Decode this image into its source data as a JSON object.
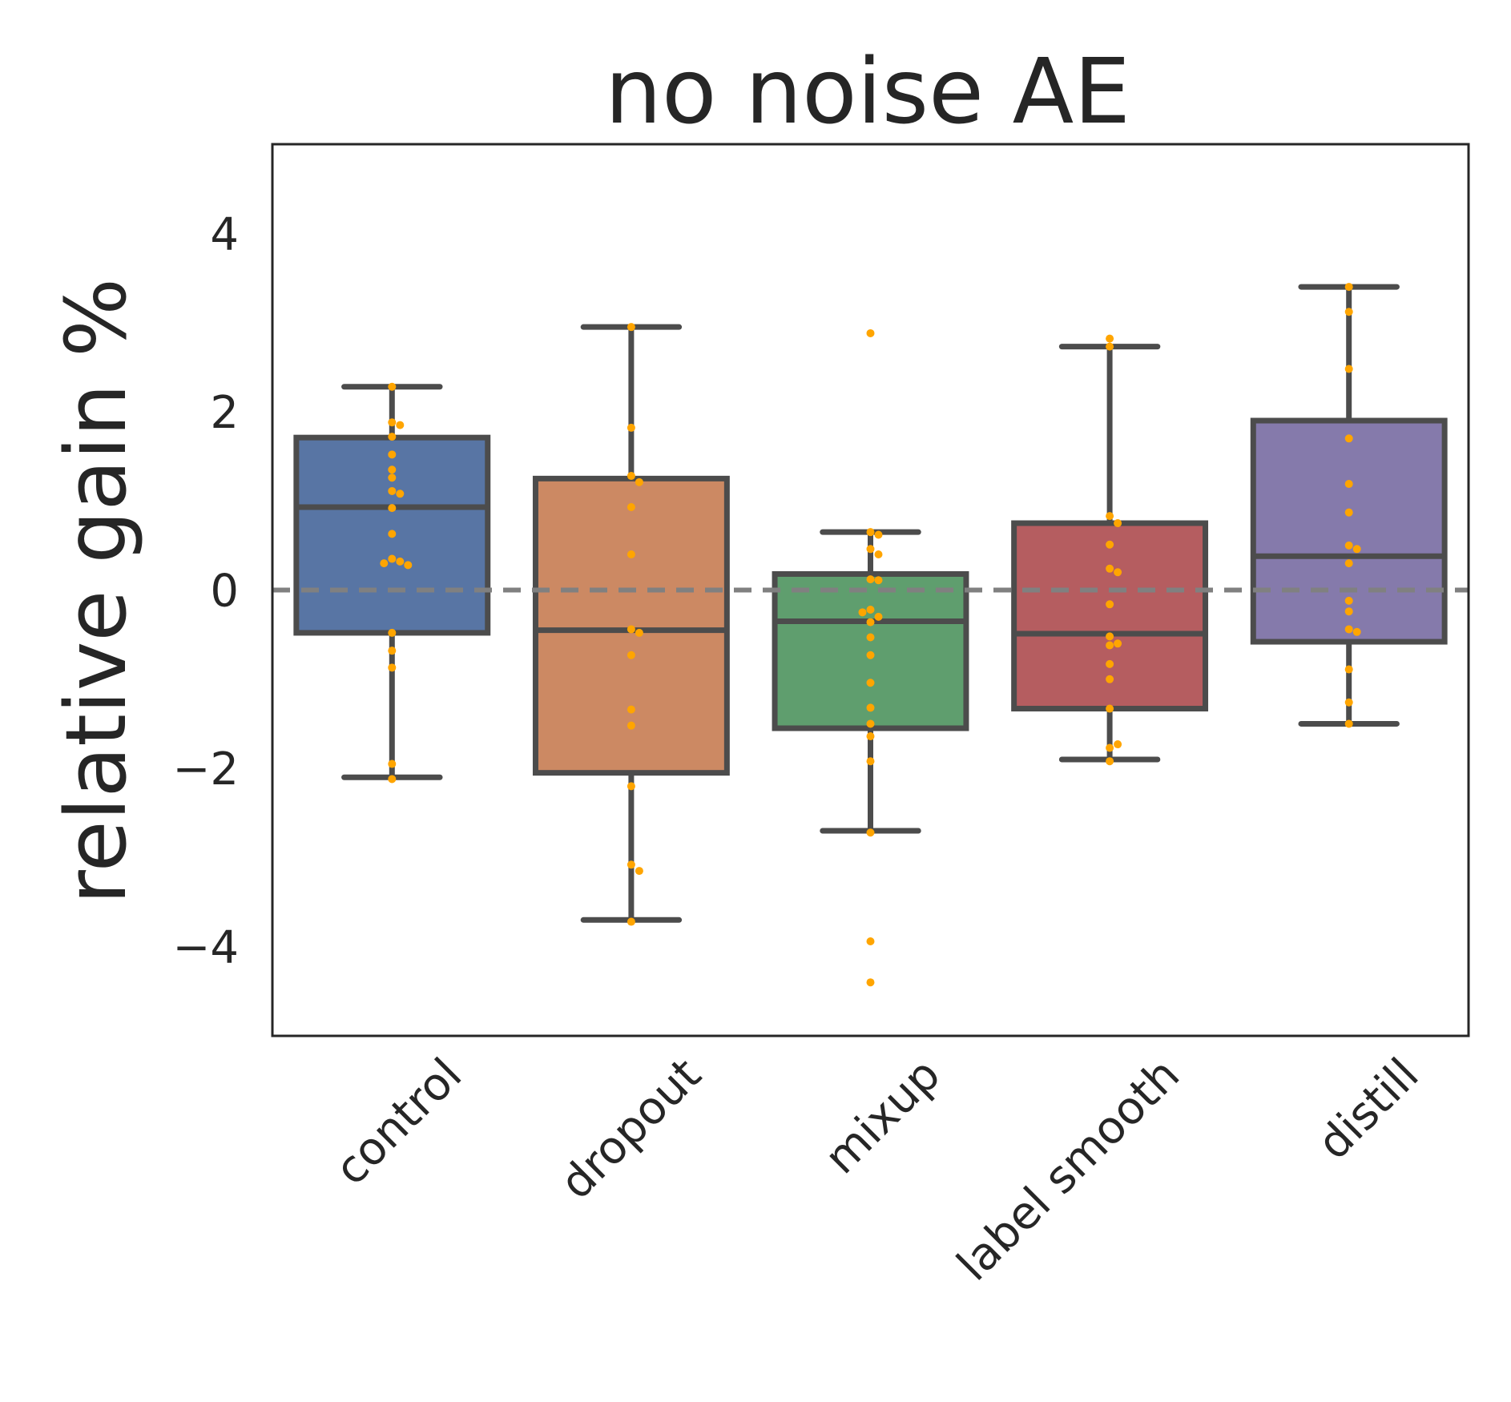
{
  "chart_data": {
    "type": "box",
    "title": "no noise AE",
    "xlabel": "",
    "ylabel": "relative gain %",
    "ylim": [
      -5,
      5
    ],
    "yticks": [
      -4,
      -2,
      0,
      2,
      4
    ],
    "ytick_labels": [
      "−4",
      "−2",
      "0",
      "2",
      "4"
    ],
    "reference_line": {
      "y": 0,
      "style": "dashed",
      "color": "#808080"
    },
    "point_color": "#ffa500",
    "categories": [
      "control",
      "dropout",
      "mixup",
      "label smooth",
      "distill"
    ],
    "boxes": [
      {
        "name": "control",
        "color": "#5875a4",
        "whisker_low": -2.1,
        "q1": -0.48,
        "median": 0.93,
        "q3": 1.71,
        "whisker_high": 2.28,
        "points": [
          2.28,
          1.88,
          1.85,
          1.72,
          1.52,
          1.35,
          1.26,
          1.11,
          1.08,
          0.92,
          0.63,
          0.35,
          0.32,
          0.3,
          0.28,
          -0.48,
          -0.68,
          -0.87,
          -1.95,
          -2.12
        ]
      },
      {
        "name": "dropout",
        "color": "#cc8963",
        "whisker_low": -3.7,
        "q1": -2.05,
        "median": -0.45,
        "q3": 1.25,
        "whisker_high": 2.95,
        "points": [
          2.95,
          1.82,
          1.28,
          1.21,
          0.93,
          0.4,
          -0.44,
          -0.48,
          -0.73,
          -1.34,
          -1.52,
          -2.2,
          -3.08,
          -3.15,
          -3.72
        ]
      },
      {
        "name": "mixup",
        "color": "#5f9e6e",
        "whisker_low": -2.7,
        "q1": -1.55,
        "median": -0.35,
        "q3": 0.18,
        "whisker_high": 0.65,
        "points": [
          2.88,
          0.65,
          0.62,
          0.46,
          0.4,
          0.12,
          0.11,
          -0.22,
          -0.3,
          -0.36,
          -0.25,
          -0.53,
          -0.73,
          -1.04,
          -1.32,
          -1.5,
          -1.64,
          -1.92,
          -2.72,
          -3.94,
          -4.4
        ]
      },
      {
        "name": "label smooth",
        "color": "#b55d60",
        "whisker_low": -1.9,
        "q1": -1.33,
        "median": -0.49,
        "q3": 0.75,
        "whisker_high": 2.73,
        "points": [
          2.82,
          2.73,
          0.83,
          0.75,
          0.51,
          0.24,
          0.2,
          -0.16,
          -0.52,
          -0.62,
          -0.6,
          -0.83,
          -1.0,
          -1.33,
          -1.77,
          -1.73,
          -1.92
        ]
      },
      {
        "name": "distill",
        "color": "#857aab",
        "whisker_low": -1.5,
        "q1": -0.58,
        "median": 0.38,
        "q3": 1.9,
        "whisker_high": 3.4,
        "points": [
          3.4,
          3.12,
          2.48,
          1.7,
          1.19,
          0.87,
          0.5,
          0.46,
          0.3,
          -0.12,
          -0.24,
          -0.44,
          -0.47,
          -0.89,
          -1.26,
          -1.5
        ]
      }
    ]
  }
}
